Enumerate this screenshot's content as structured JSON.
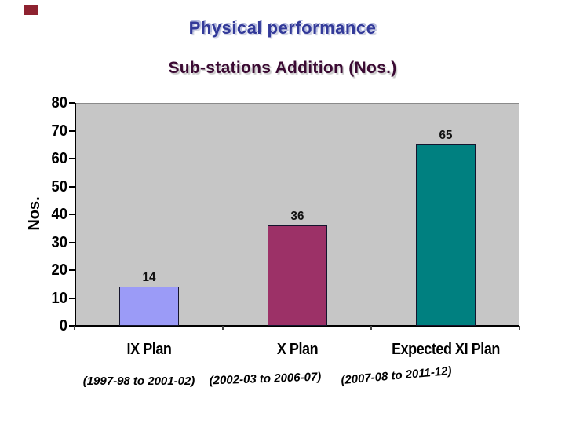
{
  "page": {
    "background": "#ffffff"
  },
  "decor": {
    "corner_square_color": "#8e2230"
  },
  "header": {
    "title": "Physical performance",
    "title_color": "#333a99",
    "subtitle": "Sub-stations Addition (Nos.)",
    "subtitle_color": "#3b0a33"
  },
  "chart_data": {
    "type": "bar",
    "title": "Sub-stations Addition (Nos.)",
    "xlabel": "",
    "ylabel": "Nos.",
    "ylim": [
      0,
      80
    ],
    "yticks": [
      0,
      10,
      20,
      30,
      40,
      50,
      60,
      70,
      80
    ],
    "categories": [
      "IX Plan",
      "X Plan",
      "Expected XI Plan"
    ],
    "category_periods": [
      "(1997-98 to 2001-02)",
      "(2002-03 to 2006-07)",
      "(2007-08 to 2011-12)"
    ],
    "values": [
      14,
      36,
      65
    ],
    "value_labels": [
      "14",
      "36",
      "65"
    ],
    "bar_colors": [
      "#9b9bf7",
      "#9c3167",
      "#008080"
    ],
    "plot_background": "#c6c6c6",
    "grid": false,
    "legend": false,
    "value_labels_shown": true
  }
}
